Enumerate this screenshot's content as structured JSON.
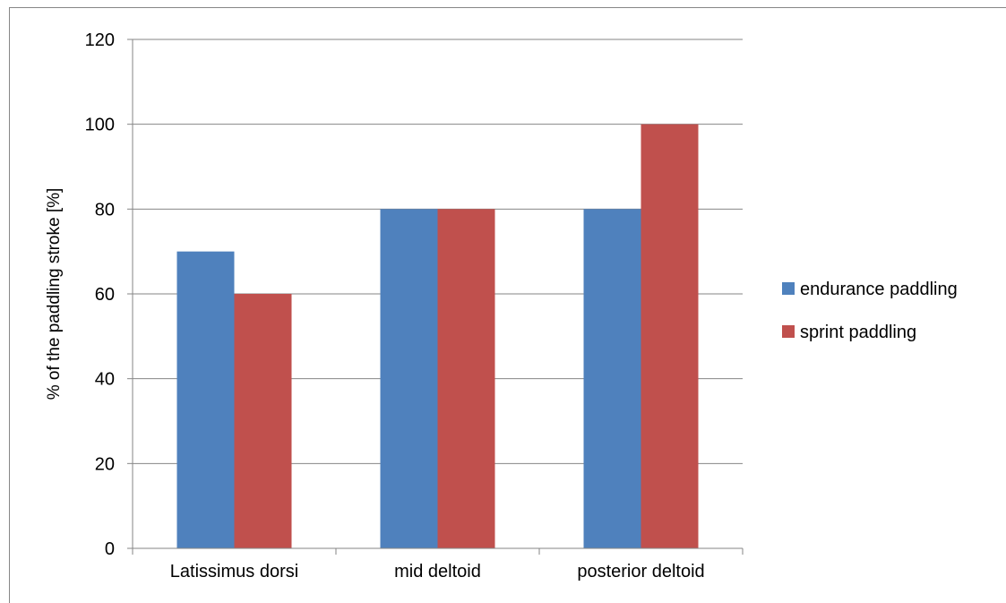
{
  "chart_data": {
    "type": "bar",
    "categories": [
      "Latissimus dorsi",
      "mid deltoid",
      "posterior deltoid"
    ],
    "series": [
      {
        "name": "endurance paddling",
        "color": "#4F81BD",
        "values": [
          70,
          80,
          80
        ]
      },
      {
        "name": "sprint paddling",
        "color": "#C0504D",
        "values": [
          60,
          80,
          100
        ]
      }
    ],
    "title": "",
    "xlabel": "",
    "ylabel": "% of the paddling stroke [%]",
    "ylim": [
      0,
      120
    ],
    "yticks": [
      0,
      20,
      40,
      60,
      80,
      100,
      120
    ],
    "grid": true,
    "legend": "right"
  }
}
